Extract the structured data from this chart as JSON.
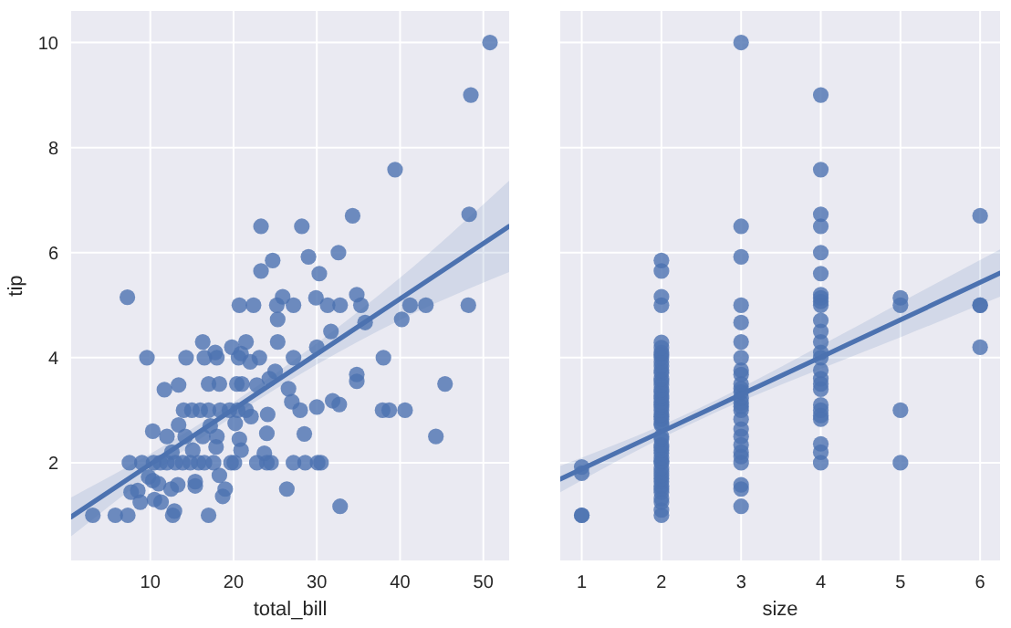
{
  "chart_data": [
    {
      "type": "scatter",
      "xlabel": "total_bill",
      "ylabel": "tip",
      "xlim": [
        0.5,
        53.1
      ],
      "ylim": [
        0.14,
        10.6
      ],
      "xticks": [
        10,
        20,
        30,
        40,
        50
      ],
      "yticks": [
        2,
        4,
        6,
        8,
        10
      ],
      "grid": true,
      "marker": "circle",
      "series": [
        {
          "color": "#4c72b0",
          "x": [
            50.8,
            48.5,
            39.4,
            48.3,
            34.3,
            23.3,
            28.2,
            32.6,
            29.0,
            24.7,
            23.3,
            30.3,
            7.25,
            25.9,
            29.9,
            34.8,
            35.3,
            48.2,
            41.2,
            43.1,
            20.7,
            22.4,
            25.2,
            27.2,
            31.3,
            32.8,
            25.3,
            40.2,
            35.8,
            31.7,
            25.3,
            16.3,
            21.5,
            30.0,
            19.8,
            9.6,
            14.3,
            16.5,
            18.0,
            20.6,
            23.1,
            27.2,
            38.0,
            17.8,
            20.9,
            22.0,
            24.3,
            25.0,
            34.8,
            34.8,
            45.4,
            13.4,
            17.0,
            18.3,
            20.4,
            21.0,
            22.8,
            11.7,
            26.6,
            31.9,
            32.7,
            27.0,
            14.0,
            15.0,
            16.0,
            17.0,
            18.4,
            19.5,
            20.5,
            21.5,
            28.0,
            30.0,
            37.9,
            38.7,
            40.6,
            22.1,
            24.1,
            13.4,
            17.2,
            20.2,
            12.0,
            14.2,
            16.3,
            18.0,
            10.3,
            24.0,
            28.5,
            44.3,
            20.7,
            12.6,
            15.1,
            17.9,
            20.9,
            23.7,
            7.5,
            9.0,
            10.4,
            11.2,
            12.0,
            13.0,
            13.9,
            14.8,
            15.8,
            16.5,
            17.6,
            19.7,
            20.1,
            22.8,
            24.0,
            24.5,
            27.2,
            28.6,
            30.1,
            30.5,
            26.4,
            9.8,
            10.3,
            11.0,
            12.5,
            13.3,
            15.4,
            15.4,
            18.3,
            19.0,
            18.7,
            10.5,
            11.3,
            8.8,
            8.5,
            7.7,
            12.7,
            12.9,
            17.0,
            3.1,
            5.8,
            7.3,
            32.8
          ],
          "values": [
            10,
            9,
            7.58,
            6.73,
            6.7,
            6.5,
            6.5,
            6.0,
            5.92,
            5.85,
            5.65,
            5.6,
            5.15,
            5.16,
            5.14,
            5.2,
            5.0,
            5.0,
            5.0,
            5.0,
            5.0,
            5.0,
            5.0,
            5.0,
            5.0,
            5.0,
            4.73,
            4.73,
            4.67,
            4.5,
            4.3,
            4.3,
            4.3,
            4.2,
            4.2,
            4.0,
            4.0,
            4.0,
            4.0,
            4.0,
            4.0,
            4.0,
            4.0,
            4.1,
            4.08,
            3.92,
            3.6,
            3.74,
            3.68,
            3.55,
            3.5,
            3.48,
            3.5,
            3.5,
            3.5,
            3.5,
            3.48,
            3.39,
            3.41,
            3.18,
            3.11,
            3.16,
            3.0,
            3.0,
            3.0,
            3.0,
            3.0,
            3.0,
            3.0,
            3.0,
            3.0,
            3.06,
            3.0,
            3.0,
            3.0,
            2.88,
            2.92,
            2.72,
            2.7,
            2.75,
            2.5,
            2.5,
            2.5,
            2.5,
            2.6,
            2.56,
            2.55,
            2.5,
            2.45,
            2.2,
            2.24,
            2.3,
            2.24,
            2.18,
            2.0,
            2.0,
            2.0,
            2.0,
            2.0,
            2.0,
            2.0,
            2.0,
            2.0,
            2.0,
            2.0,
            2.0,
            2.0,
            2.0,
            2.0,
            2.0,
            2.0,
            2.0,
            2.0,
            2.0,
            1.5,
            1.73,
            1.66,
            1.6,
            1.5,
            1.58,
            1.56,
            1.64,
            1.76,
            1.5,
            1.36,
            1.3,
            1.25,
            1.25,
            1.47,
            1.44,
            1.0,
            1.08,
            1.0,
            1.0,
            1.0,
            1.0,
            1.17
          ]
        },
        {
          "type": "line",
          "marker": "none",
          "color": "#4c72b0",
          "x": [
            0.5,
            10,
            20,
            30,
            40,
            53.1
          ],
          "values": [
            0.97,
            1.97,
            3.02,
            4.07,
            5.12,
            6.5
          ],
          "lower": [
            0.6,
            1.77,
            2.89,
            3.87,
            4.72,
            5.63
          ],
          "upper": [
            1.34,
            2.17,
            3.15,
            4.27,
            5.52,
            7.37
          ]
        }
      ]
    },
    {
      "type": "scatter",
      "xlabel": "size",
      "xlim": [
        0.73,
        6.25
      ],
      "ylim": [
        0.14,
        10.6
      ],
      "xticks": [
        1,
        2,
        3,
        4,
        5,
        6
      ],
      "yticks": [
        2,
        4,
        6,
        8,
        10
      ],
      "grid": true,
      "marker": "circle",
      "tick_labels": "x",
      "series": [
        {
          "color": "#4c72b0",
          "x": [
            1,
            1,
            1,
            1,
            2,
            2,
            2,
            2,
            2,
            2,
            2,
            2,
            2,
            2,
            2,
            2,
            2,
            2,
            2,
            2,
            2,
            2,
            2,
            2,
            2,
            2,
            2,
            2,
            2,
            2,
            2,
            2,
            2,
            2,
            2,
            2,
            2,
            2,
            2,
            2,
            2,
            2,
            2,
            2,
            2,
            2,
            2,
            2,
            2,
            2,
            2,
            2,
            2,
            2,
            3,
            3,
            3,
            3,
            3,
            3,
            3,
            3,
            3,
            3,
            3,
            3,
            3,
            3,
            3,
            3,
            3,
            3,
            3,
            3,
            3,
            3,
            3,
            3,
            3,
            3,
            4,
            4,
            4,
            4,
            4,
            4,
            4,
            4,
            4,
            4,
            4,
            4,
            4,
            4,
            4,
            4,
            4,
            4,
            4,
            4,
            4,
            4,
            4,
            4,
            4,
            4,
            5,
            5,
            5,
            5,
            6,
            6,
            6,
            6
          ],
          "values": [
            1.0,
            1.8,
            1.92,
            1.0,
            1.0,
            1.1,
            1.25,
            1.32,
            1.44,
            1.5,
            1.56,
            1.64,
            1.7,
            1.76,
            1.83,
            1.9,
            2.0,
            2.03,
            2.09,
            2.18,
            2.24,
            2.3,
            2.34,
            2.45,
            2.5,
            2.72,
            2.75,
            2.83,
            2.88,
            2.92,
            3.0,
            3.06,
            3.11,
            3.16,
            3.23,
            3.27,
            3.35,
            3.39,
            3.48,
            3.55,
            3.6,
            3.71,
            3.76,
            3.84,
            3.92,
            4.0,
            4.06,
            4.1,
            4.19,
            4.29,
            5.0,
            5.16,
            5.65,
            5.85,
            1.17,
            1.5,
            1.58,
            2.0,
            2.12,
            2.2,
            2.34,
            2.5,
            2.64,
            2.83,
            3.0,
            3.07,
            3.14,
            3.23,
            3.35,
            3.41,
            3.5,
            3.68,
            3.76,
            4.0,
            4.3,
            4.67,
            5.0,
            5.92,
            6.5,
            10.0,
            2.0,
            2.2,
            2.36,
            2.83,
            2.9,
            3.0,
            3.1,
            3.4,
            3.5,
            3.6,
            3.76,
            4.0,
            4.1,
            4.3,
            4.5,
            4.71,
            5.0,
            5.07,
            5.14,
            5.2,
            5.6,
            6.0,
            6.5,
            6.73,
            7.58,
            9.0,
            2.0,
            3.0,
            5.0,
            5.14,
            4.2,
            5.0,
            5.0,
            6.7
          ]
        },
        {
          "type": "line",
          "marker": "none",
          "color": "#4c72b0",
          "x": [
            0.73,
            2,
            3,
            4,
            5,
            6.25
          ],
          "values": [
            1.69,
            2.59,
            3.3,
            4.01,
            4.72,
            5.61
          ],
          "lower": [
            1.44,
            2.47,
            3.17,
            3.79,
            4.39,
            5.16
          ],
          "upper": [
            1.94,
            2.71,
            3.43,
            4.23,
            5.05,
            6.06
          ]
        }
      ]
    }
  ]
}
